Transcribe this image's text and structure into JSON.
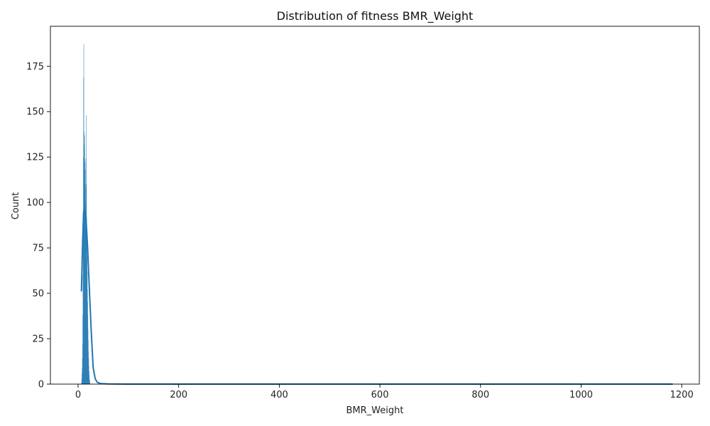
{
  "chart_data": {
    "type": "bar",
    "title": "Distribution of fitness BMR_Weight",
    "xlabel": "BMR_Weight",
    "ylabel": "Count",
    "xlim": [
      -55,
      1235
    ],
    "ylim": [
      0,
      197
    ],
    "x_ticks": [
      0,
      200,
      400,
      600,
      800,
      1000,
      1200
    ],
    "y_ticks": [
      0,
      25,
      50,
      75,
      100,
      125,
      150,
      175
    ],
    "grid": false,
    "histogram": {
      "color": "#1f77b4",
      "bin_width": 0.4,
      "bins": [
        {
          "x": 6.6,
          "count": 1
        },
        {
          "x": 7.0,
          "count": 3
        },
        {
          "x": 7.4,
          "count": 6
        },
        {
          "x": 7.8,
          "count": 9
        },
        {
          "x": 8.2,
          "count": 14
        },
        {
          "x": 8.6,
          "count": 22
        },
        {
          "x": 9.0,
          "count": 38
        },
        {
          "x": 9.4,
          "count": 60
        },
        {
          "x": 9.8,
          "count": 90
        },
        {
          "x": 10.2,
          "count": 125
        },
        {
          "x": 10.6,
          "count": 169
        },
        {
          "x": 11.0,
          "count": 187
        },
        {
          "x": 11.4,
          "count": 139
        },
        {
          "x": 11.8,
          "count": 132
        },
        {
          "x": 12.2,
          "count": 130
        },
        {
          "x": 12.6,
          "count": 137
        },
        {
          "x": 13.0,
          "count": 122
        },
        {
          "x": 13.4,
          "count": 110
        },
        {
          "x": 13.8,
          "count": 118
        },
        {
          "x": 14.2,
          "count": 100
        },
        {
          "x": 14.6,
          "count": 96
        },
        {
          "x": 15.0,
          "count": 124
        },
        {
          "x": 15.4,
          "count": 108
        },
        {
          "x": 15.8,
          "count": 148
        },
        {
          "x": 16.2,
          "count": 110
        },
        {
          "x": 16.6,
          "count": 92
        },
        {
          "x": 17.0,
          "count": 85
        },
        {
          "x": 17.4,
          "count": 70
        },
        {
          "x": 17.8,
          "count": 62
        },
        {
          "x": 18.2,
          "count": 52
        },
        {
          "x": 18.6,
          "count": 45
        },
        {
          "x": 19.0,
          "count": 38
        },
        {
          "x": 19.4,
          "count": 30
        },
        {
          "x": 19.8,
          "count": 24
        },
        {
          "x": 20.2,
          "count": 18
        },
        {
          "x": 20.6,
          "count": 14
        },
        {
          "x": 21.0,
          "count": 10
        },
        {
          "x": 21.4,
          "count": 7
        },
        {
          "x": 21.8,
          "count": 5
        },
        {
          "x": 22.2,
          "count": 3
        },
        {
          "x": 22.6,
          "count": 2
        },
        {
          "x": 23.0,
          "count": 1
        }
      ]
    },
    "kde": {
      "color": "#1f77b4",
      "x": [
        6.6,
        9,
        11,
        13,
        16,
        19,
        22,
        26,
        30,
        34,
        38,
        45,
        60,
        100,
        200,
        400,
        600,
        800,
        1000,
        1182
      ],
      "y": [
        51,
        78,
        95,
        96,
        90,
        75,
        55,
        30,
        9,
        3,
        1,
        0.3,
        0.1,
        0,
        0,
        0,
        0,
        0,
        0,
        0
      ]
    }
  }
}
